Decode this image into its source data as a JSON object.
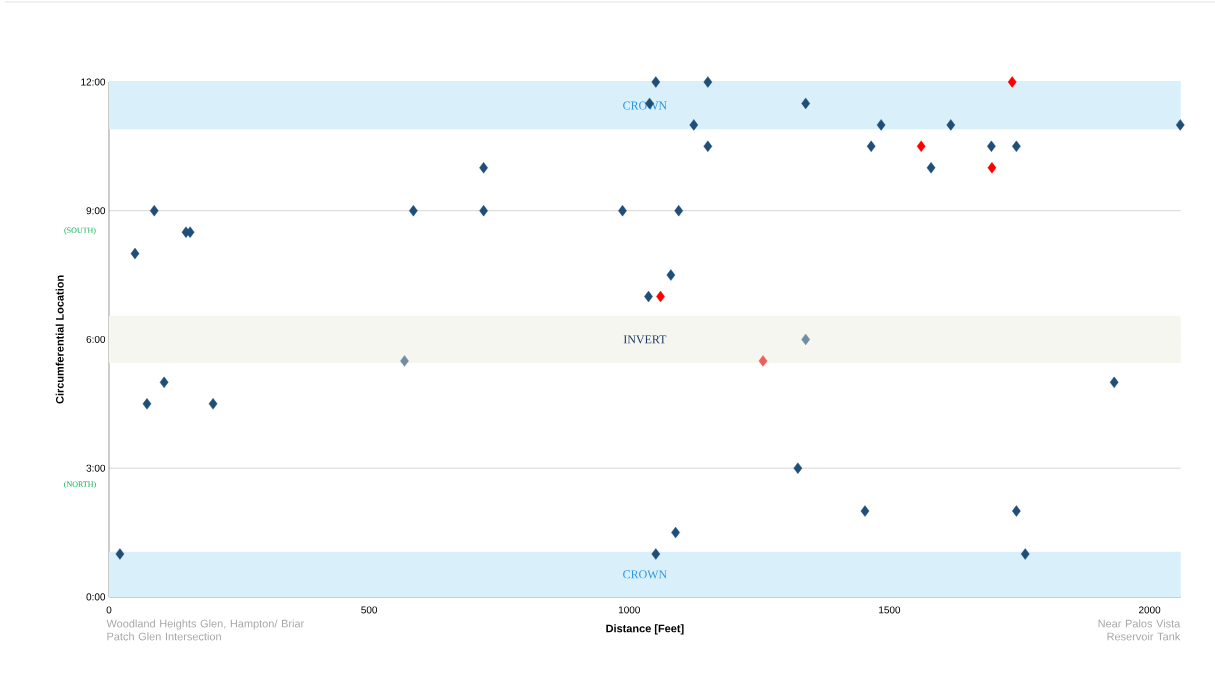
{
  "chart_data": {
    "type": "scatter",
    "xlabel": "Distance [Feet]",
    "ylabel": "Circumferential Location",
    "xlim": [
      0,
      2060
    ],
    "ylim": [
      0,
      12
    ],
    "xticks": [
      0,
      500,
      1000,
      1500,
      2000
    ],
    "yticks": [
      {
        "value": 0,
        "label": "0:00"
      },
      {
        "value": 3,
        "label": "3:00"
      },
      {
        "value": 6,
        "label": "6:00"
      },
      {
        "value": 9,
        "label": "9:00"
      },
      {
        "value": 12,
        "label": "12:00"
      }
    ],
    "grid": "y",
    "marker": "diamond",
    "bands": [
      {
        "axis": "y",
        "from": 10.9,
        "to": 12,
        "label": "CROWN",
        "color": "#d9f0fa"
      },
      {
        "axis": "y",
        "from": 5.45,
        "to": 6.55,
        "label": "INVERT",
        "color": "#f6f6f0"
      },
      {
        "axis": "y",
        "from": 0,
        "to": 1.05,
        "label": "CROWN",
        "color": "#d9f0fa"
      }
    ],
    "series": [
      {
        "color": "#1f4e79",
        "x": [
          21,
          50,
          73,
          87,
          106,
          148,
          156,
          200,
          585,
          720,
          720,
          987,
          1039,
          1037,
          1051,
          1051,
          1080,
          1089,
          1095,
          1124,
          1151,
          1151,
          1324,
          1339,
          1453,
          1465,
          1484,
          1580,
          1618,
          1696,
          1744,
          1744,
          1761,
          1932,
          2059
        ],
        "values": [
          1,
          8,
          4.5,
          9,
          5,
          8.5,
          8.5,
          4.5,
          9,
          10,
          9,
          9,
          11.5,
          7,
          12,
          1,
          7.5,
          1.5,
          9,
          11,
          12,
          10.5,
          3,
          11.5,
          2,
          10.5,
          11,
          10,
          11,
          10.5,
          10.5,
          2,
          1,
          5,
          11
        ]
      },
      {
        "color": "#ff0000",
        "x": [
          1060,
          1561,
          1697,
          1736
        ],
        "values": [
          7,
          10.5,
          10,
          12
        ]
      },
      {
        "color": "#f65a5a",
        "x": [
          1257
        ],
        "values": [
          5.5
        ]
      },
      {
        "color": "#6f8ea5",
        "x": [
          568,
          1339
        ],
        "values": [
          5.5,
          6
        ]
      }
    ],
    "annotations": [
      "(SOUTH)",
      "(NORTH)",
      "Woodland Heights Glen, Hampton/ Briar Patch Glen Intersection",
      "Near Palos Vista Reservoir Tank"
    ]
  }
}
